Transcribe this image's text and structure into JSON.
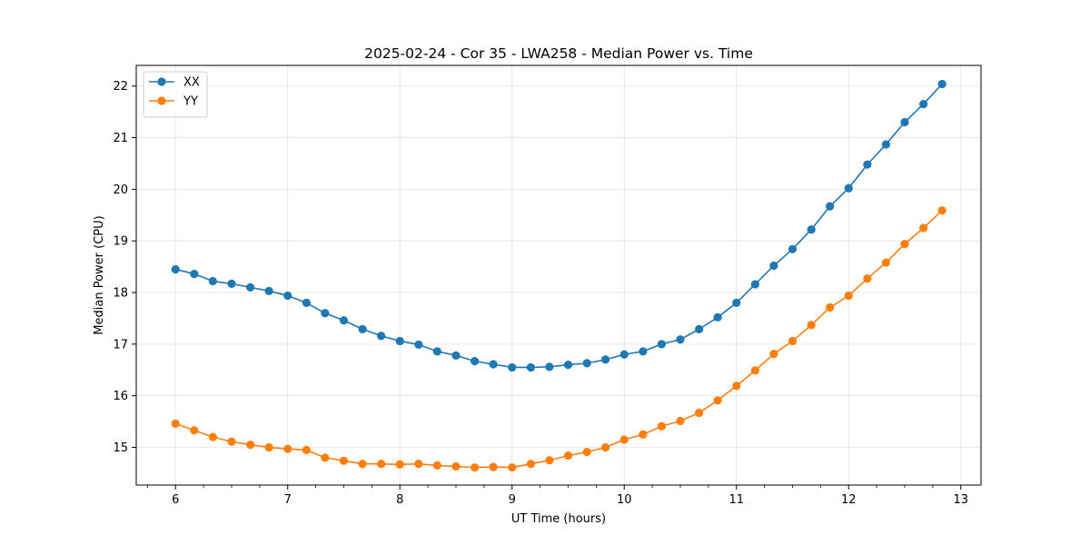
{
  "chart_data": {
    "type": "line",
    "title": "2025-02-24 - Cor 35 - LWA258 - Median Power vs. Time",
    "xlabel": "UT Time (hours)",
    "ylabel": "Median Power (CPU)",
    "xlim": [
      5.65,
      13.18
    ],
    "ylim": [
      14.27,
      22.4
    ],
    "xticks": [
      6,
      7,
      8,
      9,
      10,
      11,
      12,
      13
    ],
    "yticks": [
      15,
      16,
      17,
      18,
      19,
      20,
      21,
      22
    ],
    "grid": true,
    "legend": "top-left",
    "x": [
      6.0,
      6.167,
      6.333,
      6.5,
      6.667,
      6.833,
      7.0,
      7.167,
      7.333,
      7.5,
      7.667,
      7.833,
      8.0,
      8.167,
      8.333,
      8.5,
      8.667,
      8.833,
      9.0,
      9.167,
      9.333,
      9.5,
      9.667,
      9.833,
      10.0,
      10.167,
      10.333,
      10.5,
      10.667,
      10.833,
      11.0,
      11.167,
      11.333,
      11.5,
      11.667,
      11.833,
      12.0,
      12.167,
      12.333,
      12.5,
      12.667,
      12.833
    ],
    "series": [
      {
        "name": "XX",
        "color": "#1f77b4",
        "values": [
          18.45,
          18.36,
          18.22,
          18.17,
          18.1,
          18.03,
          17.94,
          17.8,
          17.6,
          17.46,
          17.29,
          17.16,
          17.06,
          16.99,
          16.86,
          16.78,
          16.67,
          16.61,
          16.55,
          16.55,
          16.56,
          16.6,
          16.63,
          16.7,
          16.8,
          16.86,
          17.0,
          17.09,
          17.29,
          17.52,
          17.8,
          18.16,
          18.52,
          18.84,
          19.22,
          19.67,
          20.02,
          20.48,
          20.87,
          21.3,
          21.65,
          22.04
        ]
      },
      {
        "name": "YY",
        "color": "#ff7f0e",
        "values": [
          15.46,
          15.33,
          15.2,
          15.11,
          15.05,
          15.0,
          14.97,
          14.95,
          14.8,
          14.74,
          14.68,
          14.68,
          14.67,
          14.68,
          14.65,
          14.63,
          14.61,
          14.62,
          14.61,
          14.68,
          14.75,
          14.84,
          14.91,
          15.0,
          15.15,
          15.25,
          15.41,
          15.51,
          15.67,
          15.91,
          16.19,
          16.49,
          16.81,
          17.06,
          17.37,
          17.71,
          17.94,
          18.27,
          18.58,
          18.94,
          19.25,
          19.59
        ]
      }
    ]
  }
}
